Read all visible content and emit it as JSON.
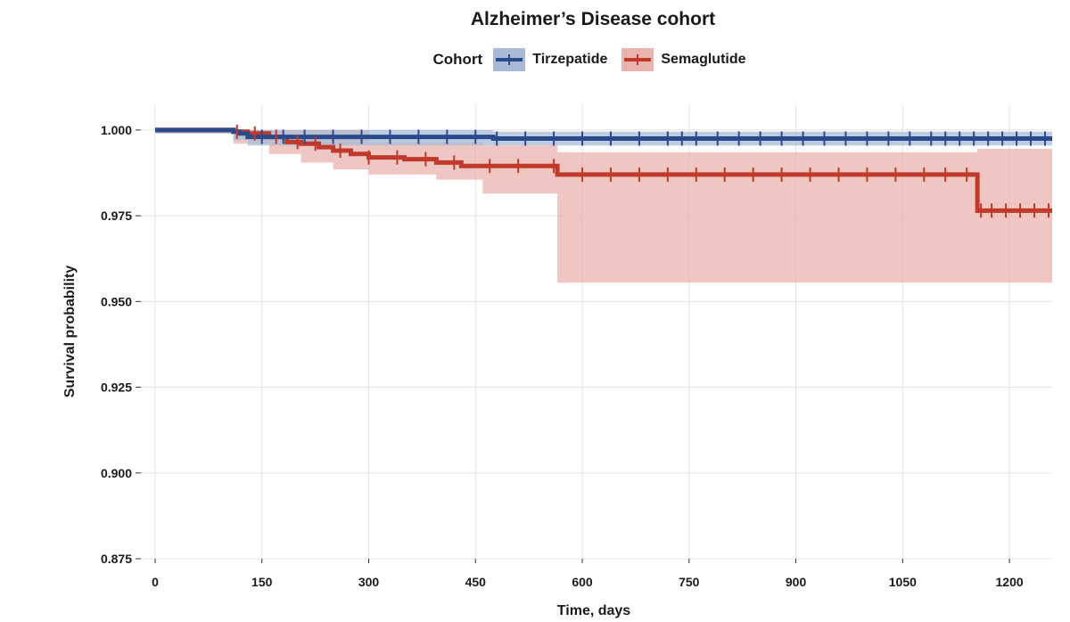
{
  "chart_data": {
    "type": "line",
    "subtype": "kaplan-meier",
    "title": "Alzheimer’s Disease cohort",
    "legend_title": "Cohort",
    "xlabel": "Time, days",
    "ylabel": "Survival probability",
    "xlim": [
      -20,
      1260
    ],
    "ylim": [
      0.875,
      1.0075
    ],
    "xticks": [
      0,
      150,
      300,
      450,
      600,
      750,
      900,
      1050,
      1200
    ],
    "xtick_labels": [
      "0",
      "150",
      "300",
      "450",
      "600",
      "750",
      "900",
      "1050",
      "1200"
    ],
    "yticks": [
      0.875,
      0.9,
      0.925,
      0.95,
      0.975,
      1.0
    ],
    "ytick_labels": [
      "0.875",
      "0.900",
      "0.925",
      "0.950",
      "0.975",
      "1.000"
    ],
    "grid": true,
    "legend_position": "top",
    "series": [
      {
        "name": "Tirzepatide",
        "color": "#2b4a8c",
        "band_color": "#a9b9d6",
        "steps": [
          [
            0,
            1.0
          ],
          [
            110,
            0.9995
          ],
          [
            118,
            0.999
          ],
          [
            130,
            0.998
          ],
          [
            475,
            0.9975
          ],
          [
            1260,
            0.9975
          ]
        ],
        "ci_lower": [
          [
            0,
            1.0
          ],
          [
            110,
            0.999
          ],
          [
            130,
            0.997
          ],
          [
            475,
            0.9955
          ],
          [
            1260,
            0.9955
          ]
        ],
        "ci_upper": [
          [
            0,
            1.0
          ],
          [
            110,
            1.0
          ],
          [
            475,
            0.9995
          ],
          [
            1260,
            0.9995
          ]
        ],
        "censor_times": [
          150,
          180,
          210,
          250,
          290,
          330,
          370,
          410,
          450,
          480,
          520,
          560,
          600,
          640,
          680,
          720,
          740,
          760,
          790,
          820,
          850,
          880,
          910,
          940,
          970,
          1000,
          1030,
          1060,
          1090,
          1110,
          1130,
          1150,
          1170,
          1190,
          1210,
          1230,
          1250
        ]
      },
      {
        "name": "Semaglutide",
        "color": "#c0392b",
        "band_color": "#e9b3ae",
        "steps": [
          [
            0,
            1.0
          ],
          [
            110,
            0.9995
          ],
          [
            130,
            0.999
          ],
          [
            160,
            0.998
          ],
          [
            185,
            0.9965
          ],
          [
            205,
            0.996
          ],
          [
            230,
            0.995
          ],
          [
            250,
            0.994
          ],
          [
            275,
            0.993
          ],
          [
            300,
            0.992
          ],
          [
            350,
            0.9915
          ],
          [
            395,
            0.9905
          ],
          [
            430,
            0.9895
          ],
          [
            460,
            0.9895
          ],
          [
            565,
            0.987
          ],
          [
            1155,
            0.9765
          ],
          [
            1260,
            0.9765
          ]
        ],
        "ci_lower": [
          [
            0,
            1.0
          ],
          [
            110,
            0.999
          ],
          [
            160,
            0.996
          ],
          [
            205,
            0.993
          ],
          [
            250,
            0.9905
          ],
          [
            300,
            0.9885
          ],
          [
            395,
            0.987
          ],
          [
            460,
            0.9855
          ],
          [
            565,
            0.9815
          ],
          [
            1155,
            0.9555
          ],
          [
            1260,
            0.9555
          ]
        ],
        "ci_upper": [
          [
            0,
            1.0
          ],
          [
            200,
            1.0
          ],
          [
            300,
            0.9965
          ],
          [
            460,
            0.9955
          ],
          [
            565,
            0.9935
          ],
          [
            1155,
            0.9945
          ],
          [
            1260,
            0.9945
          ]
        ],
        "censor_times": [
          115,
          140,
          170,
          200,
          225,
          260,
          300,
          340,
          380,
          420,
          470,
          510,
          560,
          600,
          640,
          680,
          720,
          760,
          800,
          840,
          880,
          920,
          960,
          1000,
          1040,
          1080,
          1110,
          1140,
          1160,
          1175,
          1195,
          1215,
          1235,
          1255
        ]
      }
    ]
  }
}
